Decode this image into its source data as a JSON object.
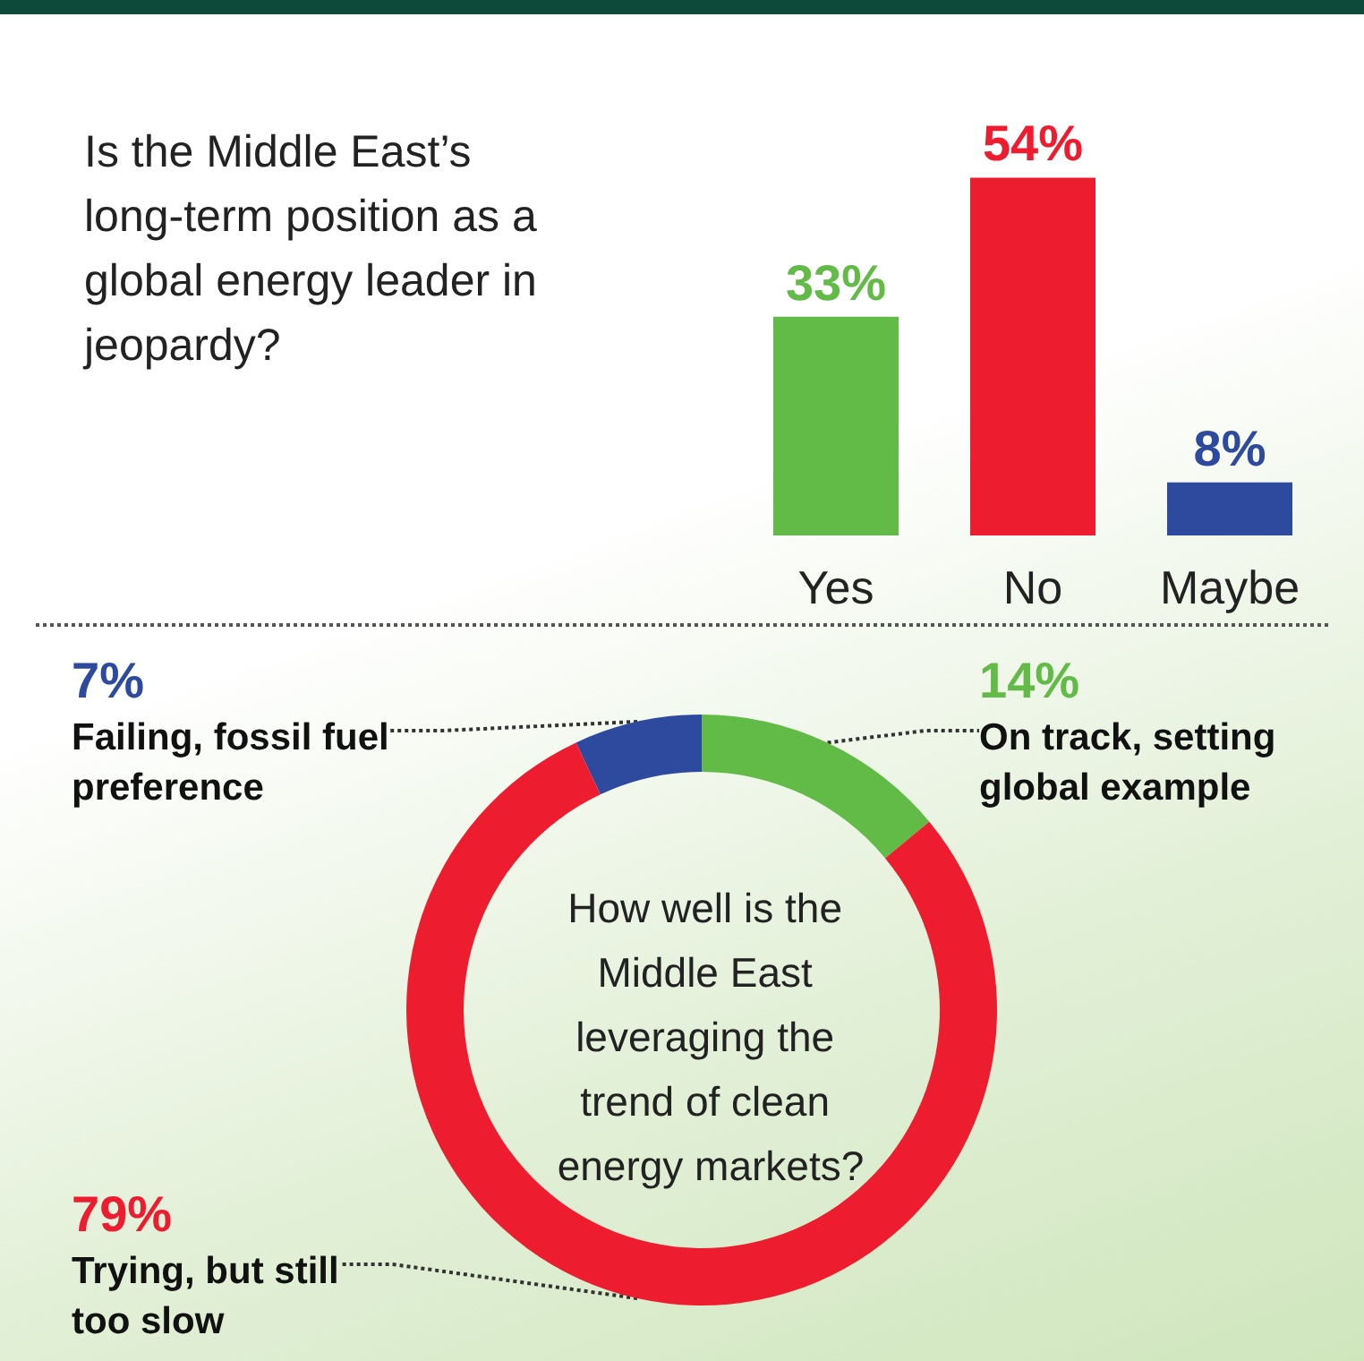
{
  "chart_data": [
    {
      "type": "bar",
      "title": "Is the Middle East’s long-term position as a global energy leader in jeopardy?",
      "categories": [
        "Yes",
        "No",
        "Maybe"
      ],
      "values": [
        33,
        54,
        8
      ],
      "colors": [
        "#62bb46",
        "#ed1c2e",
        "#2e4a9e"
      ],
      "value_labels": [
        "33%",
        "54%",
        "8%"
      ]
    },
    {
      "type": "donut",
      "title": "How well is the Middle East leveraging the trend of clean energy markets?",
      "categories": [
        "Failing, fossil fuel preference",
        "On track, setting global example",
        "Trying, but still too slow"
      ],
      "values": [
        7,
        14,
        79
      ],
      "colors": [
        "#2e4a9e",
        "#62bb46",
        "#ed1c2e"
      ],
      "value_labels": [
        "7%",
        "14%",
        "79%"
      ]
    }
  ]
}
